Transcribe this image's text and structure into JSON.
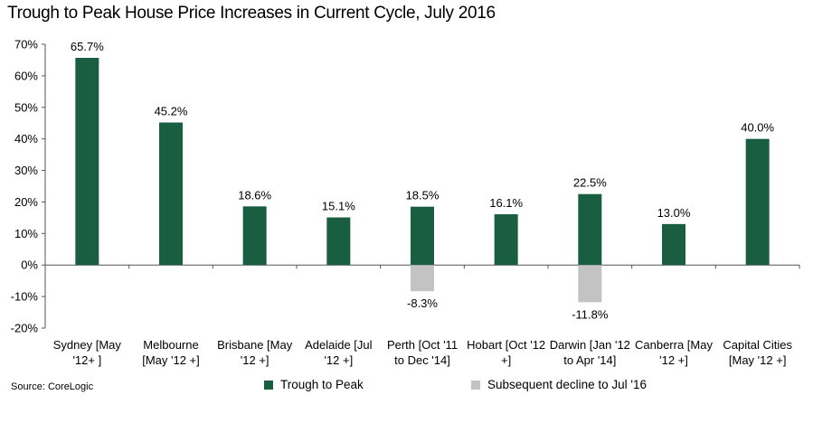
{
  "chart_data": {
    "type": "bar",
    "title": "Trough to Peak House Price Increases in Current Cycle, July 2016",
    "source": "Source: CoreLogic",
    "categories": [
      [
        "Sydney [May",
        "'12+ ]"
      ],
      [
        "Melbourne",
        "[May '12 +]"
      ],
      [
        "Brisbane [May",
        "'12 +]"
      ],
      [
        "Adelaide [Jul",
        "'12 +]"
      ],
      [
        "Perth [Oct '11",
        "to Dec '14]"
      ],
      [
        "Hobart [Oct '12",
        "+]"
      ],
      [
        "Darwin [Jan '12",
        "to Apr '14]"
      ],
      [
        "Canberra [May",
        "'12 +]"
      ],
      [
        "Capital Cities",
        "[May '12 +]"
      ]
    ],
    "series": [
      {
        "name": "Trough to Peak",
        "color": "#1a5e42",
        "values": [
          65.7,
          45.2,
          18.6,
          15.1,
          18.5,
          16.1,
          22.5,
          13.0,
          40.0
        ],
        "labels": [
          "65.7%",
          "45.2%",
          "18.6%",
          "15.1%",
          "18.5%",
          "16.1%",
          "22.5%",
          "13.0%",
          "40.0%"
        ]
      },
      {
        "name": "Subsequent decline to Jul '16",
        "color": "#c3c3c3",
        "values": [
          null,
          null,
          null,
          null,
          -8.3,
          null,
          -11.8,
          null,
          null
        ],
        "labels": [
          null,
          null,
          null,
          null,
          "-8.3%",
          null,
          "-11.8%",
          null,
          null
        ]
      }
    ],
    "ylim": [
      -20,
      70
    ],
    "yticks": [
      -20,
      -10,
      0,
      10,
      20,
      30,
      40,
      50,
      60,
      70
    ],
    "ytick_labels": [
      "-20%",
      "-10%",
      "0%",
      "10%",
      "20%",
      "30%",
      "40%",
      "50%",
      "60%",
      "70%"
    ],
    "legend_position": "bottom",
    "grid": false
  }
}
